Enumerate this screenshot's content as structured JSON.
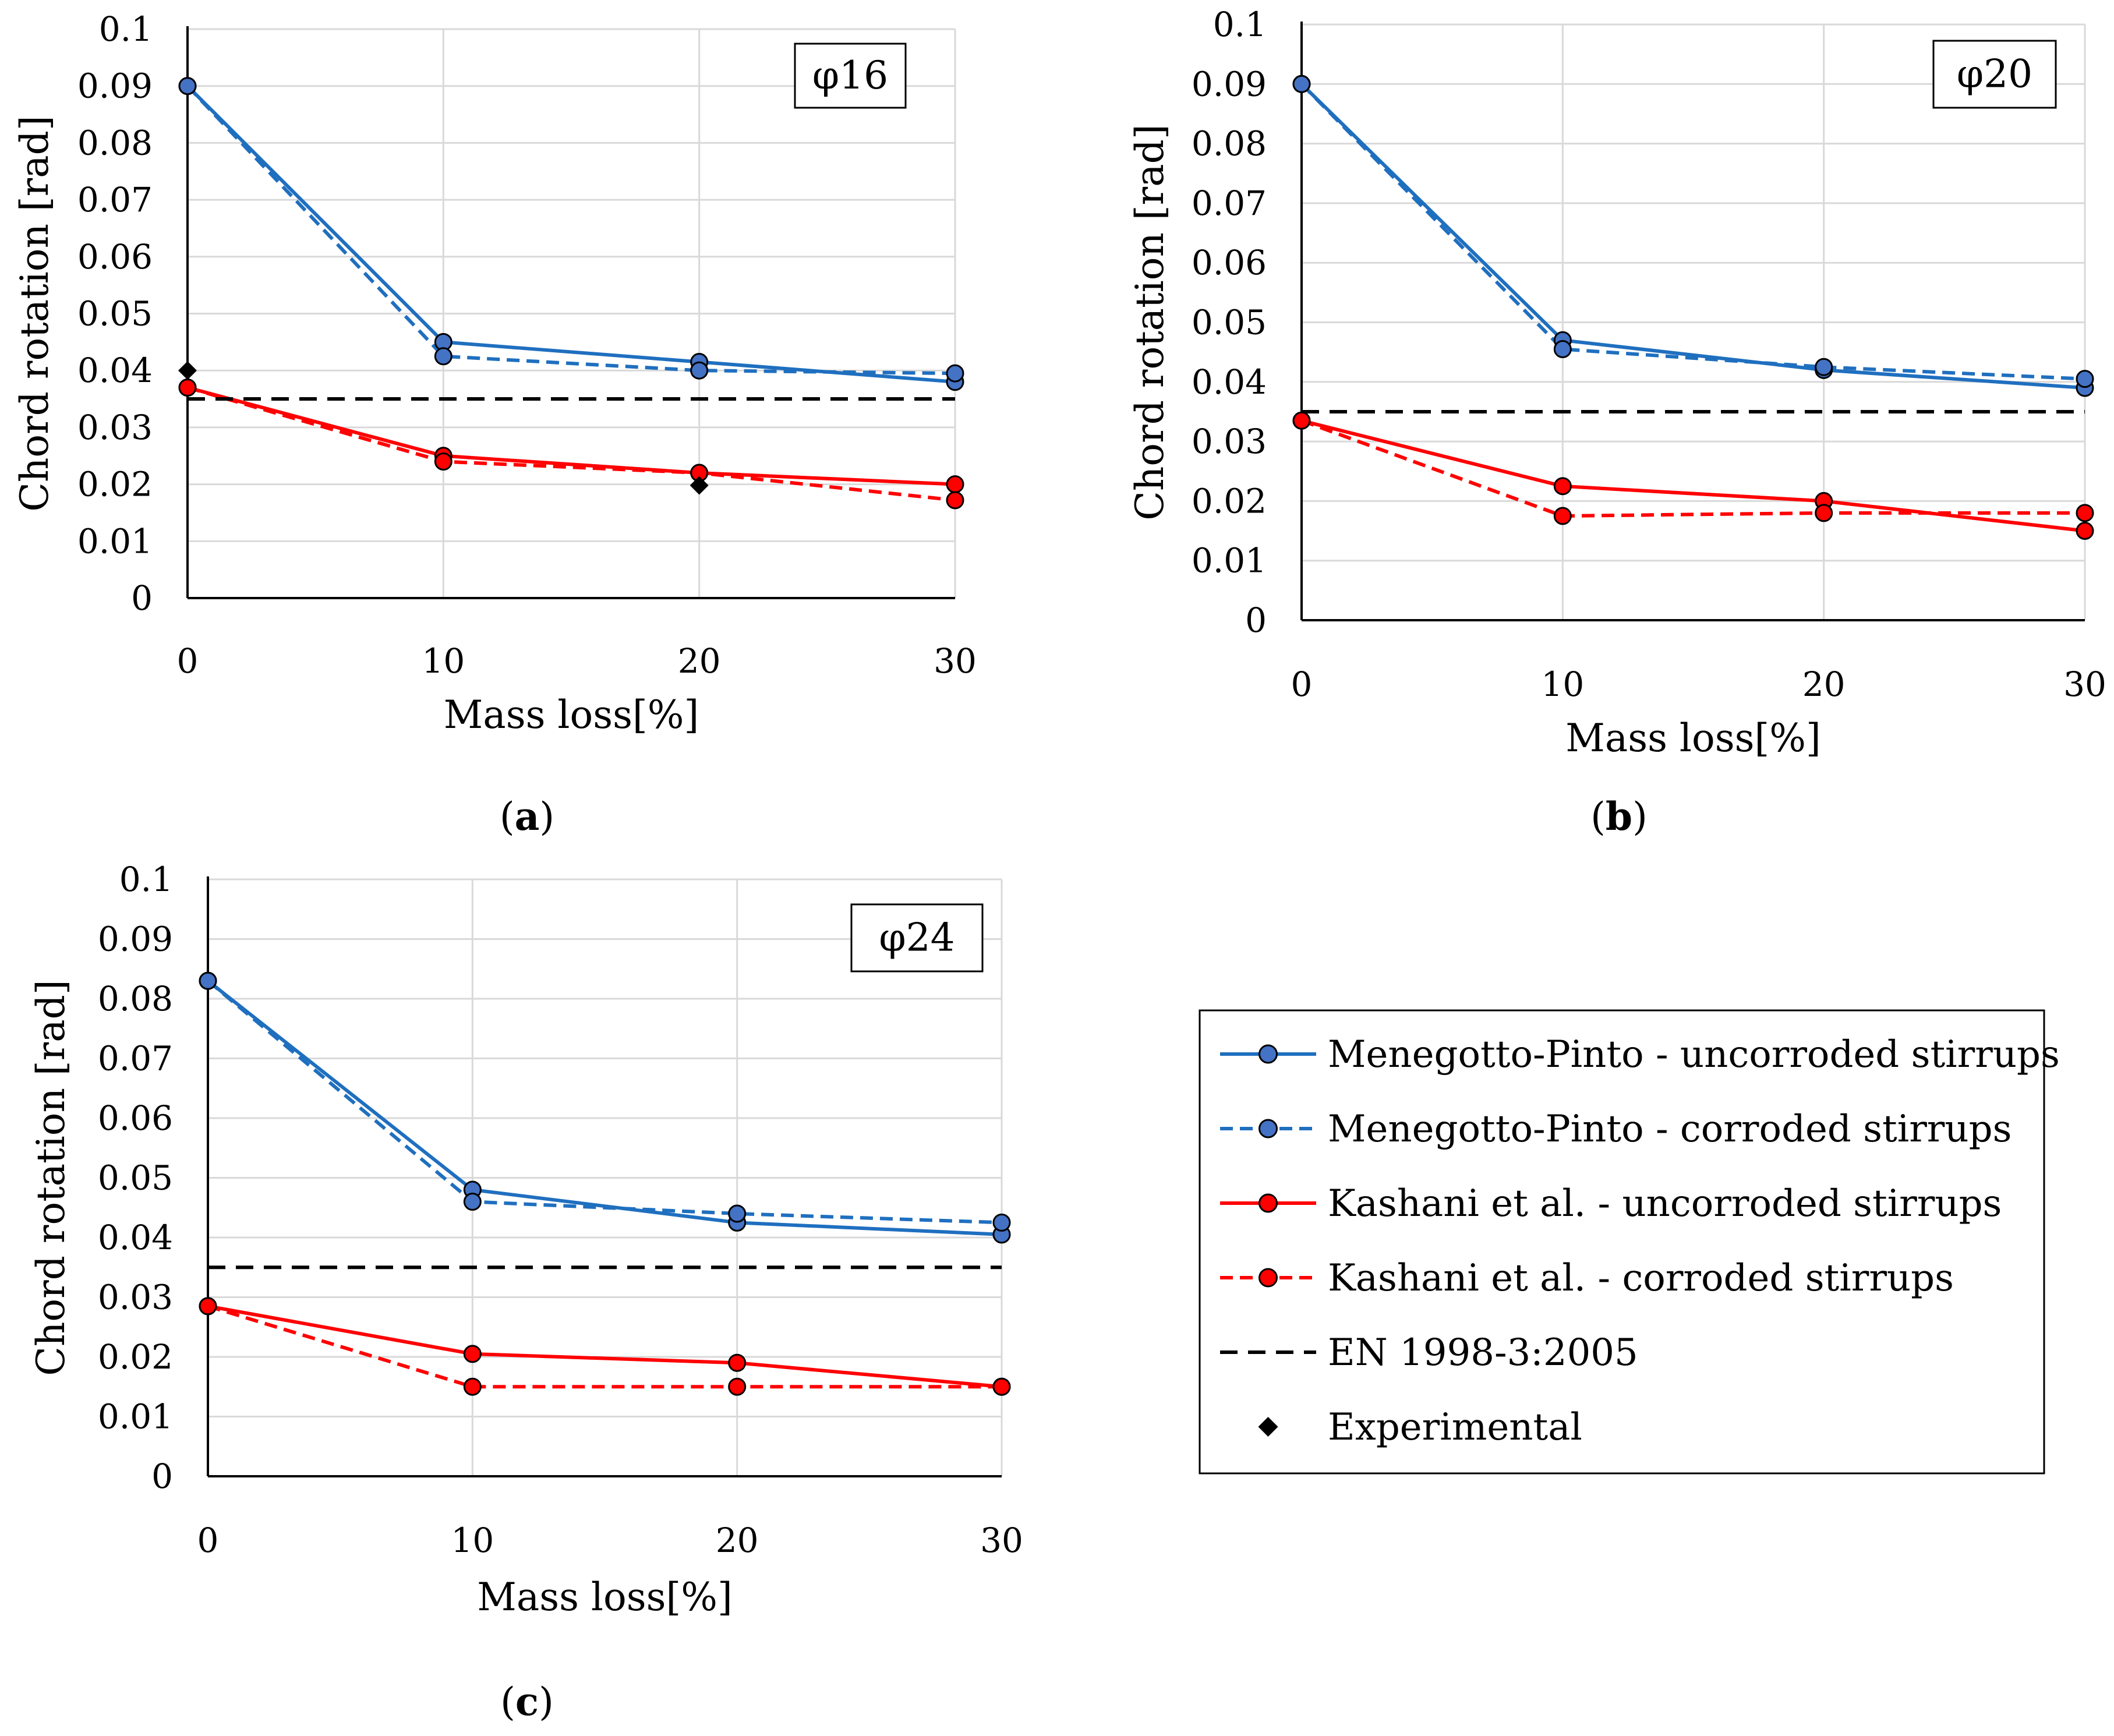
{
  "colors": {
    "mp": "#1f6fbf",
    "mp_marker": "#4472c4",
    "kashani": "#ff0000",
    "en": "#000000",
    "experimental": "#000000"
  },
  "legend": {
    "items": [
      {
        "label": "Menegotto-Pinto - uncorroded stirrups",
        "style": "solid",
        "color": "#1f6fbf",
        "marker": "circle"
      },
      {
        "label": "Menegotto-Pinto - corroded stirrups",
        "style": "dashed",
        "color": "#1f6fbf",
        "marker": "circle"
      },
      {
        "label": "Kashani et al. - uncorroded stirrups",
        "style": "solid",
        "color": "#ff0000",
        "marker": "circle"
      },
      {
        "label": "Kashani et al. - corroded stirrups",
        "style": "dashed",
        "color": "#ff0000",
        "marker": "circle"
      },
      {
        "label": "EN 1998-3:2005",
        "style": "dashed",
        "color": "#000000",
        "marker": "none"
      },
      {
        "label": "Experimental",
        "style": "none",
        "color": "#000000",
        "marker": "diamond"
      }
    ]
  },
  "chart_data": [
    {
      "type": "line",
      "panel_label": "(a)",
      "panel_letter": "a",
      "box_label": "φ16",
      "xlabel": "Mass loss[%]",
      "ylabel": "Chord rotation [rad]",
      "x": [
        0,
        10,
        20,
        30
      ],
      "xticks": [
        "0",
        "10",
        "20",
        "30"
      ],
      "yticks": [
        "0",
        "0.01",
        "0.02",
        "0.03",
        "0.04",
        "0.05",
        "0.06",
        "0.07",
        "0.08",
        "0.09",
        "0.1"
      ],
      "xlim": [
        0,
        30
      ],
      "ylim": [
        0,
        0.1
      ],
      "grid": true,
      "series": [
        {
          "name": "Menegotto-Pinto - uncorroded stirrups",
          "values": [
            0.09,
            0.045,
            0.0415,
            0.038
          ]
        },
        {
          "name": "Menegotto-Pinto - corroded stirrups",
          "values": [
            0.09,
            0.0425,
            0.04,
            0.0395
          ]
        },
        {
          "name": "Kashani et al. - uncorroded stirrups",
          "values": [
            0.037,
            0.025,
            0.022,
            0.02
          ]
        },
        {
          "name": "Kashani et al. - corroded stirrups",
          "values": [
            0.037,
            0.024,
            0.022,
            0.0172
          ]
        },
        {
          "name": "EN 1998-3:2005",
          "values": [
            0.035,
            0.035,
            0.035,
            0.035
          ]
        },
        {
          "name": "Experimental",
          "points": [
            [
              0,
              0.04
            ],
            [
              20,
              0.0198
            ]
          ]
        }
      ]
    },
    {
      "type": "line",
      "panel_label": "(b)",
      "panel_letter": "b",
      "box_label": "φ20",
      "xlabel": "Mass loss[%]",
      "ylabel": "Chord rotation [rad]",
      "x": [
        0,
        10,
        20,
        30
      ],
      "xticks": [
        "0",
        "10",
        "20",
        "30"
      ],
      "yticks": [
        "0",
        "0.01",
        "0.02",
        "0.03",
        "0.04",
        "0.05",
        "0.06",
        "0.07",
        "0.08",
        "0.09",
        "0.1"
      ],
      "xlim": [
        0,
        30
      ],
      "ylim": [
        0,
        0.1
      ],
      "grid": true,
      "series": [
        {
          "name": "Menegotto-Pinto - uncorroded stirrups",
          "values": [
            0.09,
            0.047,
            0.042,
            0.039
          ]
        },
        {
          "name": "Menegotto-Pinto - corroded stirrups",
          "values": [
            0.09,
            0.0455,
            0.0425,
            0.0405
          ]
        },
        {
          "name": "Kashani et al. - uncorroded stirrups",
          "values": [
            0.0335,
            0.0225,
            0.02,
            0.015
          ]
        },
        {
          "name": "Kashani et al. - corroded stirrups",
          "values": [
            0.0335,
            0.0175,
            0.018,
            0.018
          ]
        },
        {
          "name": "EN 1998-3:2005",
          "values": [
            0.035,
            0.035,
            0.035,
            0.035
          ]
        }
      ]
    },
    {
      "type": "line",
      "panel_label": "(c)",
      "panel_letter": "c",
      "box_label": "φ24",
      "xlabel": "Mass loss[%]",
      "ylabel": "Chord rotation [rad]",
      "x": [
        0,
        10,
        20,
        30
      ],
      "xticks": [
        "0",
        "10",
        "20",
        "30"
      ],
      "yticks": [
        "0",
        "0.01",
        "0.02",
        "0.03",
        "0.04",
        "0.05",
        "0.06",
        "0.07",
        "0.08",
        "0.09",
        "0.1"
      ],
      "xlim": [
        0,
        30
      ],
      "ylim": [
        0,
        0.1
      ],
      "grid": true,
      "series": [
        {
          "name": "Menegotto-Pinto - uncorroded stirrups",
          "values": [
            0.083,
            0.048,
            0.0425,
            0.0405
          ]
        },
        {
          "name": "Menegotto-Pinto - corroded stirrups",
          "values": [
            0.083,
            0.046,
            0.044,
            0.0425
          ]
        },
        {
          "name": "Kashani et al. - uncorroded stirrups",
          "values": [
            0.0285,
            0.0205,
            0.019,
            0.015
          ]
        },
        {
          "name": "Kashani et al. - corroded stirrups",
          "values": [
            0.0285,
            0.015,
            0.015,
            0.015
          ]
        },
        {
          "name": "EN 1998-3:2005",
          "values": [
            0.035,
            0.035,
            0.035,
            0.035
          ]
        }
      ]
    }
  ]
}
